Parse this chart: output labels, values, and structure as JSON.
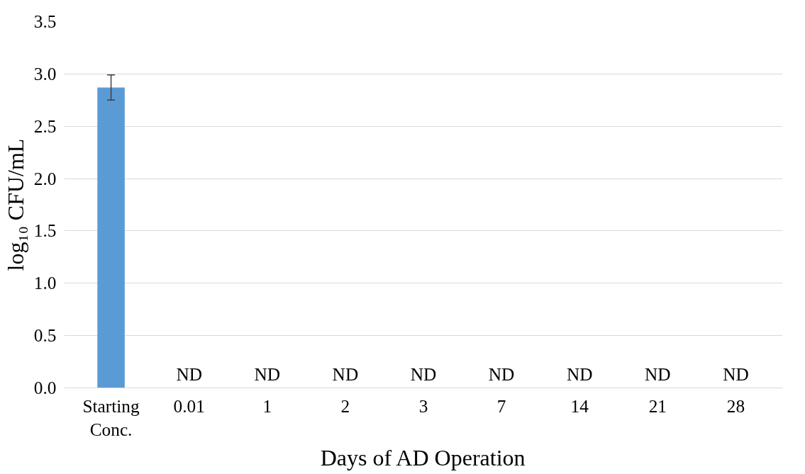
{
  "chart_data": {
    "type": "bar",
    "xlabel": "Days of AD Operation",
    "ylabel": "log₁₀ CFU/mL",
    "categories": [
      "Starting Conc.",
      "0.01",
      "1",
      "2",
      "3",
      "7",
      "14",
      "21",
      "28"
    ],
    "values": [
      2.87,
      0,
      0,
      0,
      0,
      0,
      0,
      0,
      0
    ],
    "errors": [
      0.12,
      null,
      null,
      null,
      null,
      null,
      null,
      null,
      null
    ],
    "value_labels": [
      null,
      "ND",
      "ND",
      "ND",
      "ND",
      "ND",
      "ND",
      "ND",
      "ND"
    ],
    "color": "#5b9bd5",
    "ylim": [
      0,
      3.5
    ],
    "yticks": [
      {
        "value": 0,
        "label": "0.0"
      },
      {
        "value": 0.5,
        "label": "0.5"
      },
      {
        "value": 1,
        "label": "1.0"
      },
      {
        "value": 1.5,
        "label": "1.5"
      },
      {
        "value": 2,
        "label": "2.0"
      },
      {
        "value": 2.5,
        "label": "2.5"
      },
      {
        "value": 3,
        "label": "3.0"
      },
      {
        "value": 3.5,
        "label": "3.5"
      }
    ],
    "grid": "y"
  }
}
